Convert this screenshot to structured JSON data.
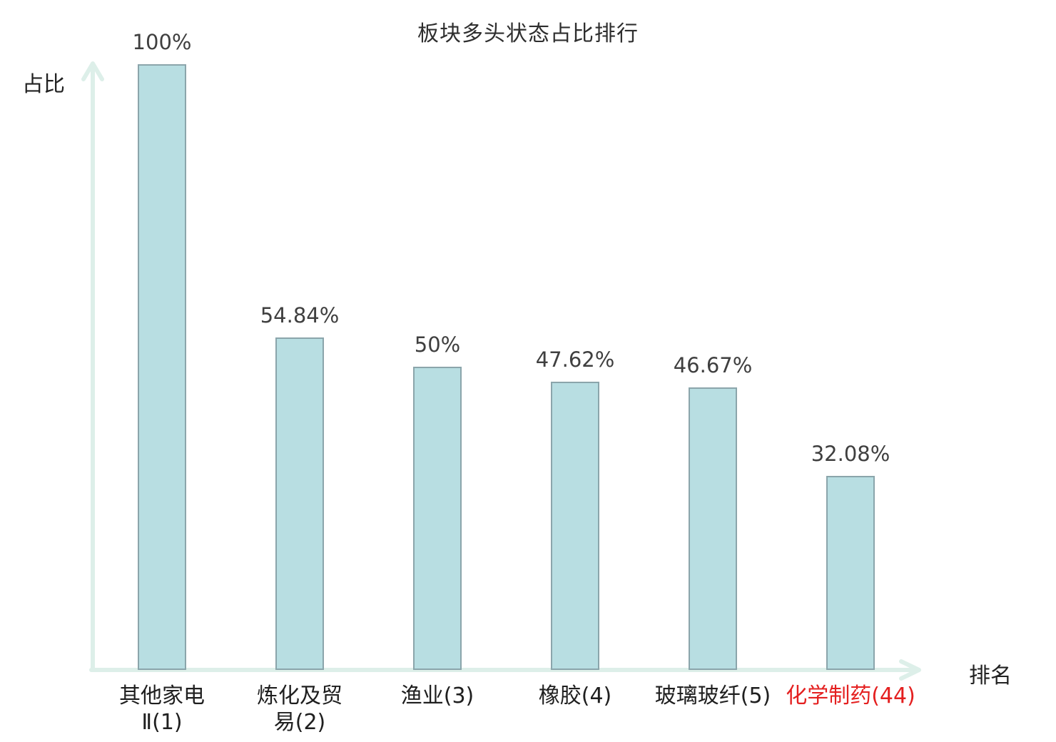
{
  "page": {
    "background": "#ffffff"
  },
  "chart_data": {
    "type": "bar",
    "title": "板块多头状态占比排行",
    "xlabel": "排名",
    "ylabel": "占比",
    "ylim": [
      0,
      100
    ],
    "grid": false,
    "legend": "none",
    "categories": [
      "其他家电Ⅱ(1)",
      "炼化及贸易(2)",
      "渔业(3)",
      "橡胶(4)",
      "玻璃玻纤(5)",
      "化学制药(44)"
    ],
    "values": [
      100,
      54.84,
      50,
      47.62,
      46.67,
      32.08
    ],
    "value_labels": [
      "100%",
      "54.84%",
      "50%",
      "47.62%",
      "46.67%",
      "32.08%"
    ],
    "tick_labels": [
      "其他家电\nⅡ(1)",
      "炼化及贸\n易(2)",
      "渔业(3)",
      "橡胶(4)",
      "玻璃玻纤(5)",
      "化学制药(44)"
    ],
    "tick_colors": [
      "#1f1f1f",
      "#1f1f1f",
      "#1f1f1f",
      "#1f1f1f",
      "#1f1f1f",
      "#e42020"
    ],
    "colors": {
      "bar_fill": "#b8dee2",
      "bar_border": "#8ba5ab",
      "axis": "#ddefe9",
      "title_text": "#2e2e2e",
      "value_text": "#3f3f3f",
      "tick_text": "#1f1f1f",
      "highlight": "#e42020"
    }
  }
}
